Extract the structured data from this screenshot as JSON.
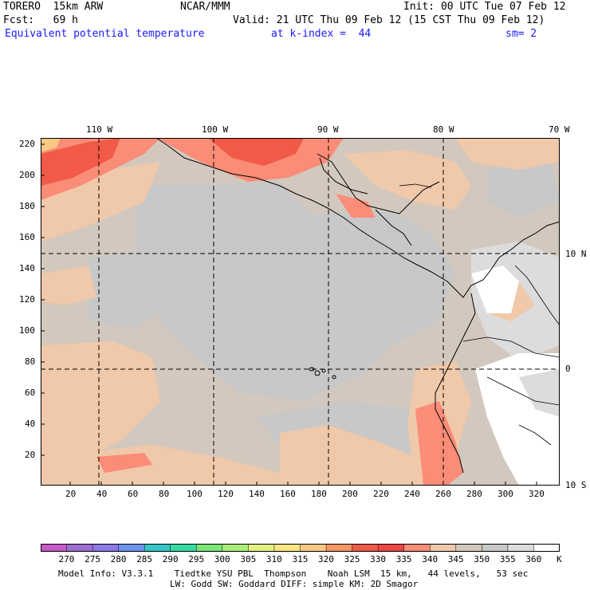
{
  "header": {
    "model": "TORERO  15km ARW",
    "org": "NCAR/MMM",
    "init": "Init: 00 UTC Tue 07 Feb 12",
    "fcst": "Fcst:   69 h",
    "valid": "Valid: 21 UTC Thu 09 Feb 12 (15 CST Thu 09 Feb 12)",
    "field": "Equivalent potential temperature",
    "level": "at k-index =  44",
    "smooth": "sm= 2"
  },
  "top_lon_labels": [
    "110 W",
    "100 W",
    "90 W",
    "80 W",
    "70 W"
  ],
  "right_lat_labels": [
    "10 N",
    "0",
    "10 S"
  ],
  "left_grid_labels": [
    "220",
    "200",
    "180",
    "160",
    "140",
    "120",
    "100",
    "80",
    "60",
    "40",
    "20"
  ],
  "bottom_grid_labels": [
    "20",
    "40",
    "60",
    "80",
    "100",
    "120",
    "140",
    "160",
    "180",
    "200",
    "220",
    "240",
    "260",
    "280",
    "300",
    "320"
  ],
  "colorbar": {
    "labels": [
      "270",
      "275",
      "280",
      "285",
      "290",
      "295",
      "300",
      "305",
      "310",
      "315",
      "320",
      "325",
      "330",
      "335",
      "340",
      "345",
      "350",
      "355",
      "360"
    ],
    "unit": "K",
    "colors": [
      "#c85ac8",
      "#a06ed2",
      "#8c78e6",
      "#6e96f0",
      "#32c8c8",
      "#32dca0",
      "#78e678",
      "#aaf078",
      "#e6f082",
      "#fae682",
      "#fac882",
      "#fa9664",
      "#f05a46",
      "#f04646",
      "#fa8c78",
      "#f0c8aa",
      "#d2c8be",
      "#c8c8c8",
      "#dcdcdc",
      "#ffffff"
    ]
  },
  "footer": {
    "line1": "Model Info: V3.3.1    Tiedtke YSU PBL  Thompson    Noah LSM  15 km,   44 levels,   53 sec",
    "line2": "LW: Godd SW: Goddard DIFF: simple KM: 2D Smagor"
  },
  "map_colors": {
    "ocean_base": "#d2c8be",
    "cool_gray": "#c8c8c8",
    "peach": "#f0c8aa",
    "salmon": "#fa8c78",
    "red": "#f05a46",
    "orange": "#fac882",
    "light_gray": "#dcdcdc",
    "white": "#ffffff",
    "coast": "#000000",
    "gridline": "#000000"
  }
}
